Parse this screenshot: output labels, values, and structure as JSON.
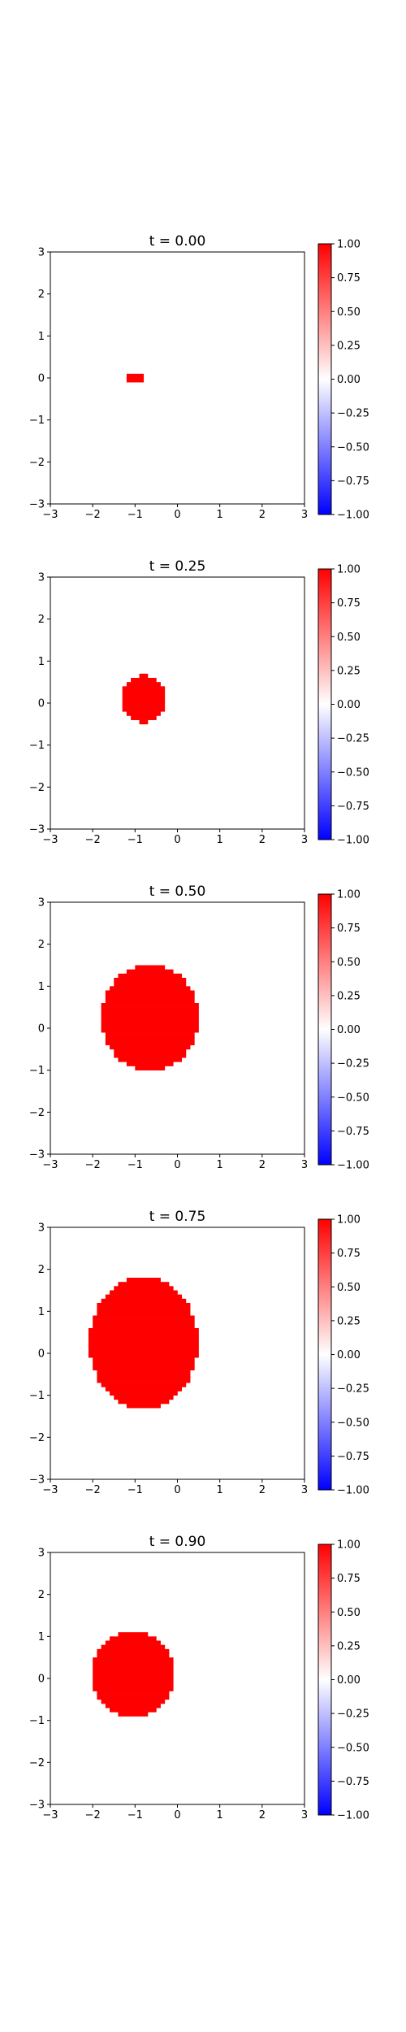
{
  "figure": {
    "colormap": {
      "name": "bwr",
      "low": "#0000ff",
      "mid": "#ffffff",
      "high": "#ff0000"
    },
    "fill_color": "#ff0000",
    "frame_color": "#000000"
  },
  "chart_data": [
    {
      "type": "heatmap",
      "title": "t = 0.00",
      "xlim": [
        -3,
        3
      ],
      "ylim": [
        -3,
        3
      ],
      "x_ticks": [
        -3,
        -2,
        -1,
        0,
        1,
        2,
        3
      ],
      "y_ticks": [
        -3,
        -2,
        -1,
        0,
        1,
        2,
        3
      ],
      "x_tick_labels": [
        "−3",
        "−2",
        "−1",
        "0",
        "1",
        "2",
        "3"
      ],
      "y_tick_labels": [
        "−3",
        "−2",
        "−1",
        "0",
        "1",
        "2",
        "3"
      ],
      "colorbar": {
        "range": [
          -1,
          1
        ],
        "ticks": [
          1.0,
          0.75,
          0.5,
          0.25,
          0.0,
          -0.25,
          -0.5,
          -0.75,
          -1.0
        ],
        "tick_labels": [
          "1.00",
          "0.75",
          "0.50",
          "0.25",
          "0.00",
          "−0.25",
          "−0.50",
          "−0.75",
          "−1.00"
        ]
      },
      "grid": false,
      "region": {
        "value": 1.0,
        "cx": -1.0,
        "cy": 0.0,
        "rx": 0.18,
        "ry": 0.15
      }
    },
    {
      "type": "heatmap",
      "title": "t = 0.25",
      "xlim": [
        -3,
        3
      ],
      "ylim": [
        -3,
        3
      ],
      "x_ticks": [
        -3,
        -2,
        -1,
        0,
        1,
        2,
        3
      ],
      "y_ticks": [
        -3,
        -2,
        -1,
        0,
        1,
        2,
        3
      ],
      "x_tick_labels": [
        "−3",
        "−2",
        "−1",
        "0",
        "1",
        "2",
        "3"
      ],
      "y_tick_labels": [
        "−3",
        "−2",
        "−1",
        "0",
        "1",
        "2",
        "3"
      ],
      "colorbar": {
        "range": [
          -1,
          1
        ],
        "ticks": [
          1.0,
          0.75,
          0.5,
          0.25,
          0.0,
          -0.25,
          -0.5,
          -0.75,
          -1.0
        ],
        "tick_labels": [
          "1.00",
          "0.75",
          "0.50",
          "0.25",
          "0.00",
          "−0.25",
          "−0.50",
          "−0.75",
          "−1.00"
        ]
      },
      "grid": false,
      "region": {
        "value": 1.0,
        "cx": -0.8,
        "cy": 0.1,
        "rx": 0.55,
        "ry": 0.57
      }
    },
    {
      "type": "heatmap",
      "title": "t = 0.50",
      "xlim": [
        -3,
        3
      ],
      "ylim": [
        -3,
        3
      ],
      "x_ticks": [
        -3,
        -2,
        -1,
        0,
        1,
        2,
        3
      ],
      "y_ticks": [
        -3,
        -2,
        -1,
        0,
        1,
        2,
        3
      ],
      "x_tick_labels": [
        "−3",
        "−2",
        "−1",
        "0",
        "1",
        "2",
        "3"
      ],
      "y_tick_labels": [
        "−3",
        "−2",
        "−1",
        "0",
        "1",
        "2",
        "3"
      ],
      "colorbar": {
        "range": [
          -1,
          1
        ],
        "ticks": [
          1.0,
          0.75,
          0.5,
          0.25,
          0.0,
          -0.25,
          -0.5,
          -0.75,
          -1.0
        ],
        "tick_labels": [
          "1.00",
          "0.75",
          "0.50",
          "0.25",
          "0.00",
          "−0.25",
          "−0.50",
          "−0.75",
          "−1.00"
        ]
      },
      "grid": false,
      "region": {
        "value": 1.0,
        "cx": -0.65,
        "cy": 0.25,
        "rx": 1.15,
        "ry": 1.27
      }
    },
    {
      "type": "heatmap",
      "title": "t = 0.75",
      "xlim": [
        -3,
        3
      ],
      "ylim": [
        -3,
        3
      ],
      "x_ticks": [
        -3,
        -2,
        -1,
        0,
        1,
        2,
        3
      ],
      "y_ticks": [
        -3,
        -2,
        -1,
        0,
        1,
        2,
        3
      ],
      "x_tick_labels": [
        "−3",
        "−2",
        "−1",
        "0",
        "1",
        "2",
        "3"
      ],
      "y_tick_labels": [
        "−3",
        "−2",
        "−1",
        "0",
        "1",
        "2",
        "3"
      ],
      "colorbar": {
        "range": [
          -1,
          1
        ],
        "ticks": [
          1.0,
          0.75,
          0.5,
          0.25,
          0.0,
          -0.25,
          -0.5,
          -0.75,
          -1.0
        ],
        "tick_labels": [
          "1.00",
          "0.75",
          "0.50",
          "0.25",
          "0.00",
          "−0.25",
          "−0.50",
          "−0.75",
          "−1.00"
        ]
      },
      "grid": false,
      "region": {
        "value": 1.0,
        "cx": -0.8,
        "cy": 0.25,
        "rx": 1.28,
        "ry": 1.58
      }
    },
    {
      "type": "heatmap",
      "title": "t = 0.90",
      "xlim": [
        -3,
        3
      ],
      "ylim": [
        -3,
        3
      ],
      "x_ticks": [
        -3,
        -2,
        -1,
        0,
        1,
        2,
        3
      ],
      "y_ticks": [
        -3,
        -2,
        -1,
        0,
        1,
        2,
        3
      ],
      "x_tick_labels": [
        "−3",
        "−2",
        "−1",
        "0",
        "1",
        "2",
        "3"
      ],
      "y_tick_labels": [
        "−3",
        "−2",
        "−1",
        "0",
        "1",
        "2",
        "3"
      ],
      "colorbar": {
        "range": [
          -1,
          1
        ],
        "ticks": [
          1.0,
          0.75,
          0.5,
          0.25,
          0.0,
          -0.25,
          -0.5,
          -0.75,
          -1.0
        ],
        "tick_labels": [
          "1.00",
          "0.75",
          "0.50",
          "0.25",
          "0.00",
          "−0.25",
          "−0.50",
          "−0.75",
          "−1.00"
        ]
      },
      "grid": false,
      "region": {
        "value": 1.0,
        "cx": -1.05,
        "cy": 0.1,
        "rx": 1.0,
        "ry": 1.0
      }
    }
  ]
}
